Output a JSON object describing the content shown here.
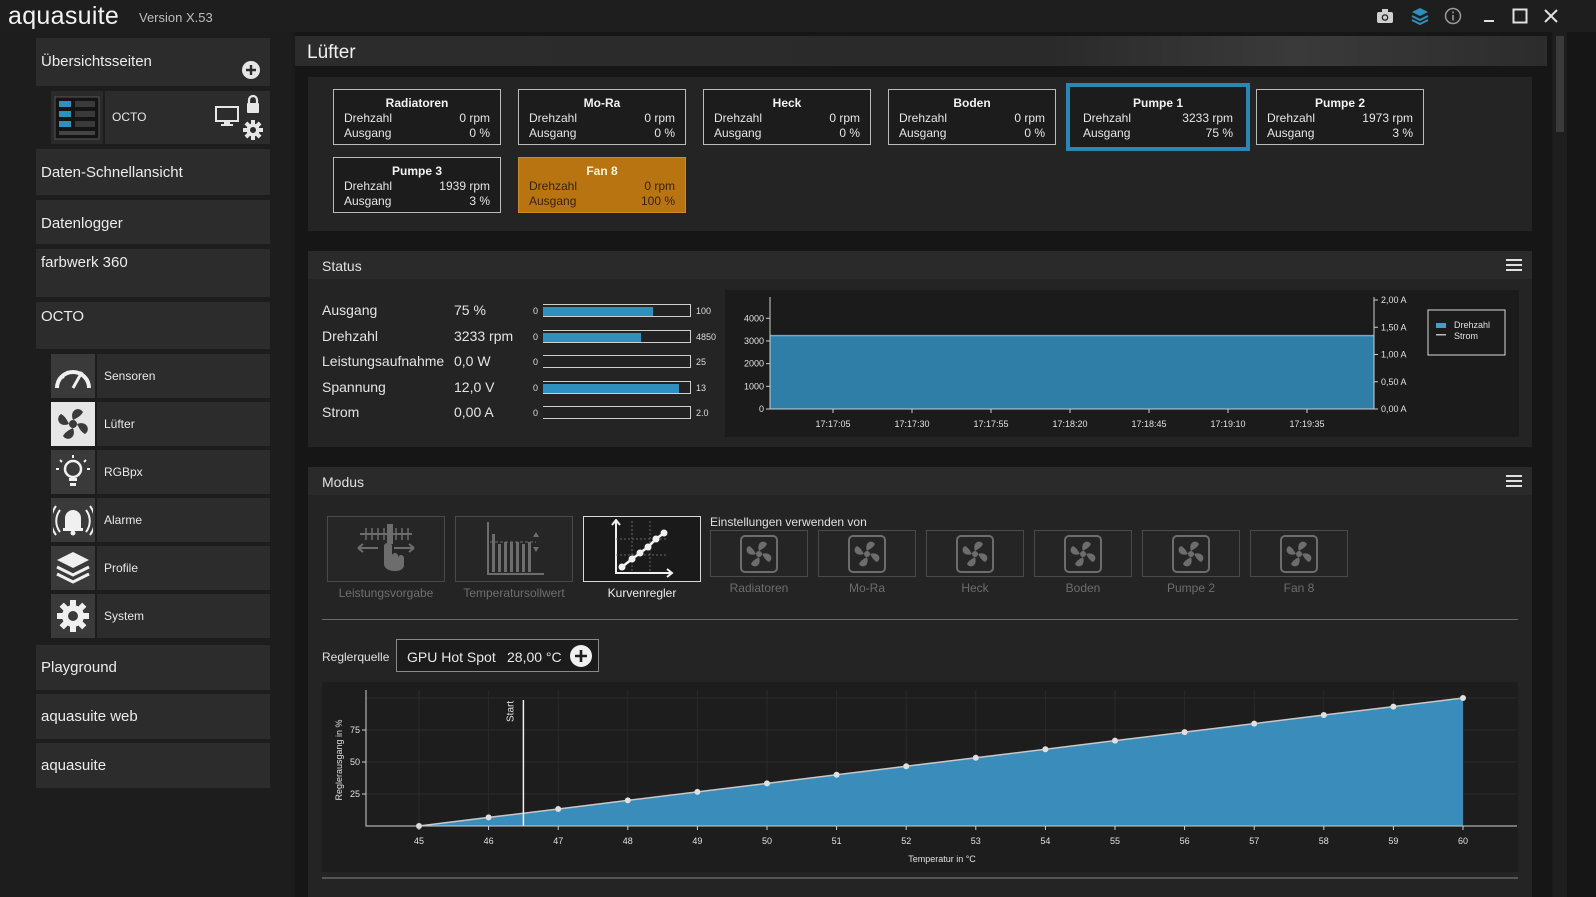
{
  "app": {
    "logo": "aquasuite",
    "version": "Version X.53"
  },
  "titlebar": {
    "icons": [
      "camera-icon",
      "layers-icon",
      "info-icon",
      "minimize-icon",
      "maximize-icon",
      "close-icon"
    ]
  },
  "sidebar": {
    "overview": "Übersichtsseiten",
    "device_name": "OCTO",
    "quickview": "Daten-Schnellansicht",
    "datalogger": "Datenlogger",
    "farbwerk": "farbwerk 360",
    "octo": "OCTO",
    "octo_items": [
      {
        "label": "Sensoren",
        "icon": "gauge-icon"
      },
      {
        "label": "Lüfter",
        "icon": "fan-icon"
      },
      {
        "label": "RGBpx",
        "icon": "lightbulb-icon"
      },
      {
        "label": "Alarme",
        "icon": "alarm-bell-icon"
      },
      {
        "label": "Profile",
        "icon": "layers-icon"
      },
      {
        "label": "System",
        "icon": "gear-icon"
      }
    ],
    "playground": "Playground",
    "web": "aquasuite web",
    "aquasuite": "aquasuite"
  },
  "page": {
    "title": "Lüfter"
  },
  "fans": {
    "row_labels": {
      "speed": "Drehzahl",
      "output": "Ausgang"
    },
    "tiles": [
      {
        "name": "Radiatoren",
        "speed": "0 rpm",
        "output": "0 %"
      },
      {
        "name": "Mo-Ra",
        "speed": "0 rpm",
        "output": "0 %"
      },
      {
        "name": "Heck",
        "speed": "0 rpm",
        "output": "0 %"
      },
      {
        "name": "Boden",
        "speed": "0 rpm",
        "output": "0 %"
      },
      {
        "name": "Pumpe 1",
        "speed": "3233 rpm",
        "output": "75 %"
      },
      {
        "name": "Pumpe 2",
        "speed": "1973 rpm",
        "output": "3 %"
      },
      {
        "name": "Pumpe 3",
        "speed": "1939 rpm",
        "output": "3 %"
      },
      {
        "name": "Fan 8",
        "speed": "0 rpm",
        "output": "100 %"
      }
    ]
  },
  "status": {
    "title": "Status",
    "rows": [
      {
        "label": "Ausgang",
        "value": "75 %",
        "min": "0",
        "max": "100",
        "fraction": 0.75
      },
      {
        "label": "Drehzahl",
        "value": "3233 rpm",
        "min": "0",
        "max": "4850",
        "fraction": 0.667
      },
      {
        "label": "Leistungsaufnahme",
        "value": "0,0 W",
        "min": "0",
        "max": "25",
        "fraction": 0.0
      },
      {
        "label": "Spannung",
        "value": "12,0 V",
        "min": "0",
        "max": "13",
        "fraction": 0.923
      },
      {
        "label": "Strom",
        "value": "0,00 A",
        "min": "0",
        "max": "2.0",
        "fraction": 0.0
      }
    ]
  },
  "chart_data": [
    {
      "type": "area",
      "x": [
        "17:17:05",
        "17:17:30",
        "17:17:55",
        "17:18:20",
        "17:18:45",
        "17:19:10",
        "17:19:35"
      ],
      "yticks_left": [
        "0",
        "1000",
        "2000",
        "3000",
        "4000"
      ],
      "yticks_right": [
        "0,00 A",
        "0,50 A",
        "1,00 A",
        "1,50 A",
        "2,00 A"
      ],
      "ylim_left": [
        0,
        4850
      ],
      "ylim_right": [
        0,
        2.0
      ],
      "series": [
        {
          "name": "Drehzahl",
          "values": [
            3233,
            3233,
            3233,
            3233,
            3233,
            3233,
            3233
          ],
          "color": "#2f7ea8"
        },
        {
          "name": "Strom",
          "values": [
            0,
            0,
            0,
            0,
            0,
            0,
            0
          ],
          "color": "#bbbbbb"
        }
      ],
      "legend": "right"
    },
    {
      "type": "area",
      "xlabel": "Temperatur in °C",
      "ylabel": "Reglerausgang in %",
      "x": [
        45,
        46,
        47,
        48,
        49,
        50,
        51,
        52,
        53,
        54,
        55,
        56,
        57,
        58,
        59,
        60
      ],
      "yticks": [
        "25",
        "50",
        "75"
      ],
      "ylim": [
        0,
        100
      ],
      "series": [
        {
          "name": "",
          "values": [
            0,
            6.7,
            13.3,
            20,
            26.7,
            33.3,
            40,
            46.7,
            53.3,
            60,
            66.7,
            73.3,
            80,
            86.7,
            93.3,
            100
          ],
          "color": "#3a8dbb"
        }
      ],
      "marker_label": "Start",
      "marker_x": 46.5
    }
  ],
  "modus": {
    "title": "Modus",
    "modes": [
      {
        "label": "Leistungsvorgabe",
        "icon": "hand-slider-icon"
      },
      {
        "label": "Temperatursollwert",
        "icon": "bar-target-icon"
      },
      {
        "label": "Kurvenregler",
        "icon": "curve-chart-icon"
      }
    ],
    "use_settings_label": "Einstellungen verwenden von",
    "sources": [
      "Radiatoren",
      "Mo-Ra",
      "Heck",
      "Boden",
      "Pumpe 2",
      "Fan 8"
    ],
    "controller_source_label": "Reglerquelle",
    "sensor_name": "GPU Hot Spot",
    "sensor_value": "28,00 °C"
  },
  "colors": {
    "accent": "#2f8fbf",
    "warning": "#b87410",
    "panel": "#242424"
  }
}
